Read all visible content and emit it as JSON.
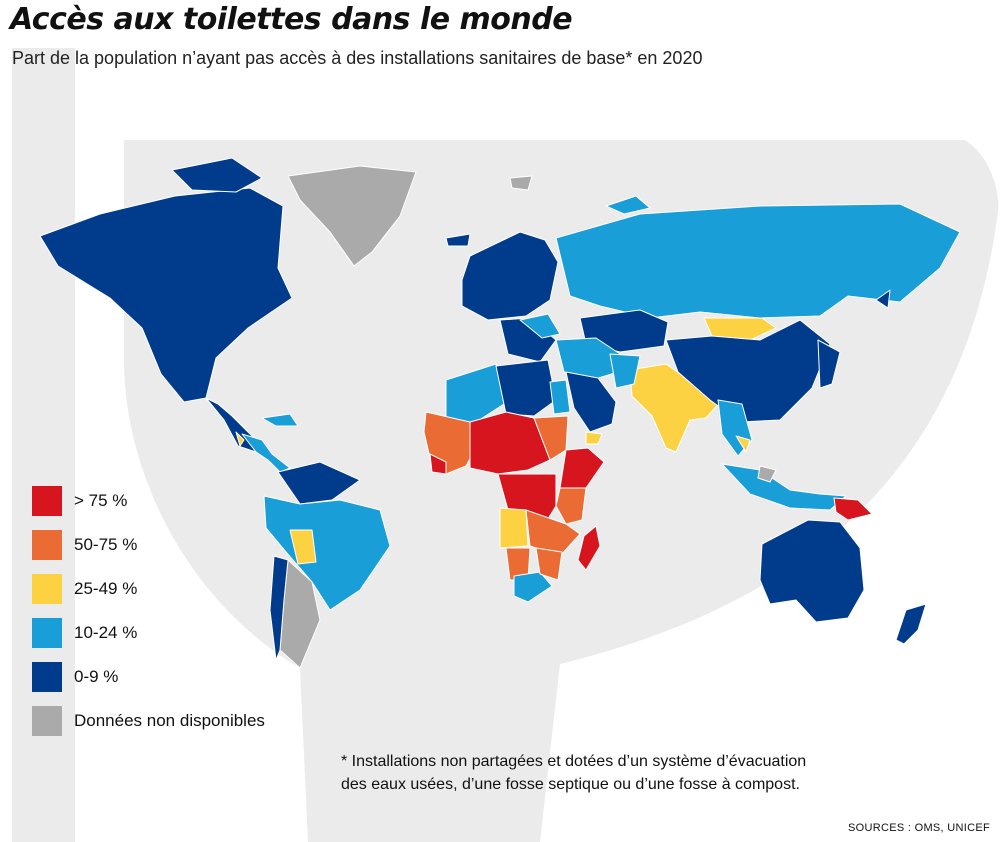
{
  "header": {
    "title": "Accès aux toilettes dans le monde",
    "subtitle": "Part de la population n’ayant pas accès à des installations sanitaires de base* en 2020"
  },
  "legend": [
    {
      "label": "> 75 %",
      "color": "#d7151f",
      "key": "gt75"
    },
    {
      "label": "50-75 %",
      "color": "#ea6b33",
      "key": "50to75"
    },
    {
      "label": "25-49 %",
      "color": "#fcd242",
      "key": "25to49"
    },
    {
      "label": "10-24 %",
      "color": "#199ed8",
      "key": "10to24"
    },
    {
      "label": "0-9 %",
      "color": "#003b8c",
      "key": "0to9"
    },
    {
      "label": "Données non disponibles",
      "color": "#aaaaaa",
      "key": "na"
    }
  ],
  "footnote": {
    "line1": "* Installations non partagées et dotées d’un système d’évacuation",
    "line2": "des eaux usées, d’une fosse septique ou d’une fosse à compost."
  },
  "sources": "SOURCES : OMS, UNICEF",
  "colors": {
    "background_art": "#ebebeb",
    "border": "#ffffff"
  }
}
